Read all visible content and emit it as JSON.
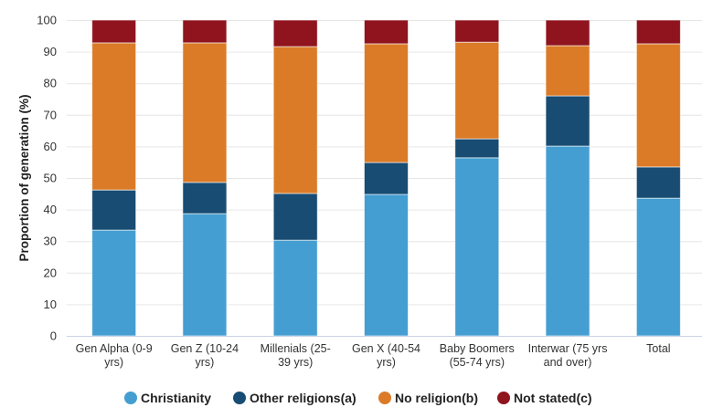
{
  "chart_data": {
    "type": "stacked-bar",
    "ylabel": "Proportion of generation (%)",
    "xlabel": "",
    "ylim": [
      0,
      100
    ],
    "yticks": [
      0,
      10,
      20,
      30,
      40,
      50,
      60,
      70,
      80,
      90,
      100
    ],
    "grid": true,
    "legend": "bottom",
    "categories": [
      [
        "Gen Alpha (0-9",
        "yrs)"
      ],
      [
        "Gen Z (10-24",
        "yrs)"
      ],
      [
        "Millenials (25-",
        "39 yrs)"
      ],
      [
        "Gen X (40-54",
        "yrs)"
      ],
      [
        "Baby Boomers",
        "(55-74 yrs)"
      ],
      [
        "Interwar (75 yrs",
        "and over)"
      ],
      [
        "Total"
      ]
    ],
    "series": [
      {
        "name": "Christianity",
        "color": "#449ed1",
        "values": [
          33.5,
          38.7,
          30.3,
          44.8,
          56.4,
          60.1,
          43.6
        ]
      },
      {
        "name": "Other religions(a)",
        "color": "#184c72",
        "values": [
          12.7,
          9.9,
          14.8,
          10.1,
          6.0,
          15.9,
          9.9
        ]
      },
      {
        "name": "No religion(b)",
        "color": "#db7b27",
        "values": [
          46.6,
          44.2,
          46.5,
          37.6,
          30.6,
          15.9,
          39.0
        ]
      },
      {
        "name": "Not stated(c)",
        "color": "#8f141d",
        "values": [
          7.2,
          7.2,
          8.4,
          7.5,
          7.0,
          8.1,
          7.5
        ]
      }
    ]
  }
}
